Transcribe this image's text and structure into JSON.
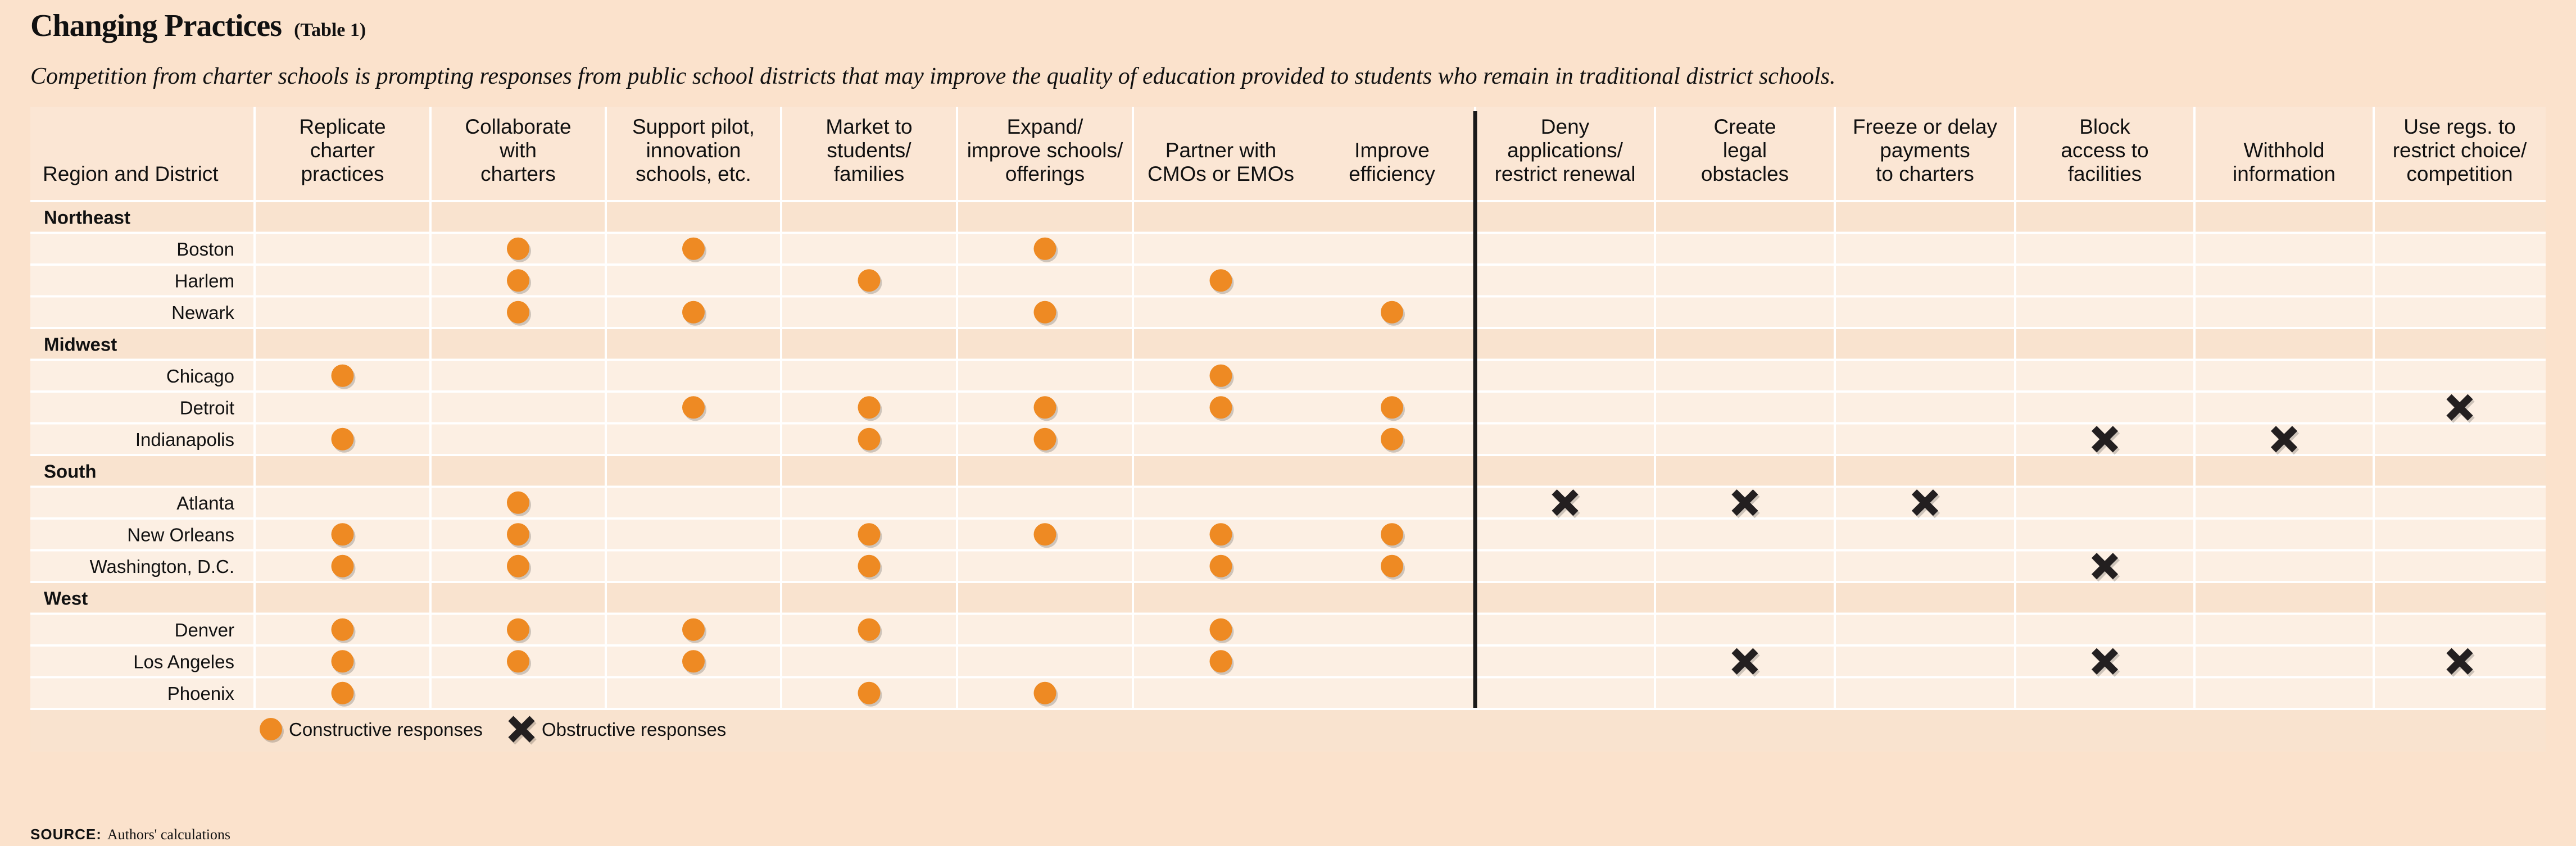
{
  "title": "Changing Practices",
  "table_tag": "(Table 1)",
  "subtitle": "Competition from charter schools is prompting responses from public school districts that may improve the quality of education provided to students who remain in traditional district schools.",
  "source": {
    "label": "SOURCE:",
    "text": "Authors' calculations"
  },
  "colors": {
    "constructive": "#ee8a23",
    "obstructive": "#231f20",
    "band": "#fbe6d4",
    "row_light": "#fcefe3",
    "row_dark": "#f9e3cf",
    "divider": "#1a1a1a"
  },
  "chart_data": {
    "type": "table",
    "row_header": "Region and District",
    "columns": [
      {
        "label": "Replicate charter practices",
        "lines": [
          "Replicate",
          "charter",
          "practices"
        ],
        "group": "constructive"
      },
      {
        "label": "Collaborate with charters",
        "lines": [
          "Collaborate",
          "with",
          "charters"
        ],
        "group": "constructive"
      },
      {
        "label": "Support pilot, innovation schools, etc.",
        "lines": [
          "Support pilot,",
          "innovation",
          "schools, etc."
        ],
        "group": "constructive"
      },
      {
        "label": "Market to students/families",
        "lines": [
          "Market to",
          "students/",
          "families"
        ],
        "group": "constructive"
      },
      {
        "label": "Expand/improve schools/offerings",
        "lines": [
          "Expand/",
          "improve schools/",
          "offerings"
        ],
        "group": "constructive"
      },
      {
        "label": "Partner with CMOs or EMOs",
        "lines": [
          "Partner with",
          "CMOs or EMOs"
        ],
        "group": "constructive"
      },
      {
        "label": "Improve efficiency",
        "lines": [
          "Improve",
          "efficiency"
        ],
        "group": "constructive"
      },
      {
        "label": "Deny applications/restrict renewal",
        "lines": [
          "Deny",
          "applications/",
          "restrict renewal"
        ],
        "group": "obstructive"
      },
      {
        "label": "Create legal obstacles",
        "lines": [
          "Create",
          "legal",
          "obstacles"
        ],
        "group": "obstructive"
      },
      {
        "label": "Freeze or delay payments to charters",
        "lines": [
          "Freeze or delay",
          "payments",
          "to charters"
        ],
        "group": "obstructive"
      },
      {
        "label": "Block access to facilities",
        "lines": [
          "Block",
          "access to",
          "facilities"
        ],
        "group": "obstructive"
      },
      {
        "label": "Withhold information",
        "lines": [
          "Withhold",
          "information"
        ],
        "group": "obstructive"
      },
      {
        "label": "Use regs. to restrict choice/competition",
        "lines": [
          "Use regs. to",
          "restrict choice/",
          "competition"
        ],
        "group": "obstructive"
      }
    ],
    "regions": [
      {
        "name": "Northeast",
        "districts": [
          {
            "name": "Boston",
            "cells": [
              0,
              1,
              1,
              0,
              1,
              0,
              0,
              0,
              0,
              0,
              0,
              0,
              0
            ]
          },
          {
            "name": "Harlem",
            "cells": [
              0,
              1,
              0,
              1,
              0,
              1,
              0,
              0,
              0,
              0,
              0,
              0,
              0
            ]
          },
          {
            "name": "Newark",
            "cells": [
              0,
              1,
              1,
              0,
              1,
              0,
              1,
              0,
              0,
              0,
              0,
              0,
              0
            ]
          }
        ]
      },
      {
        "name": "Midwest",
        "districts": [
          {
            "name": "Chicago",
            "cells": [
              1,
              0,
              0,
              0,
              0,
              1,
              0,
              0,
              0,
              0,
              0,
              0,
              0
            ]
          },
          {
            "name": "Detroit",
            "cells": [
              0,
              0,
              1,
              1,
              1,
              1,
              1,
              0,
              0,
              0,
              0,
              0,
              1
            ]
          },
          {
            "name": "Indianapolis",
            "cells": [
              1,
              0,
              0,
              1,
              1,
              0,
              1,
              0,
              0,
              0,
              1,
              1,
              0
            ]
          }
        ]
      },
      {
        "name": "South",
        "districts": [
          {
            "name": "Atlanta",
            "cells": [
              0,
              1,
              0,
              0,
              0,
              0,
              0,
              1,
              1,
              1,
              0,
              0,
              0
            ]
          },
          {
            "name": "New Orleans",
            "cells": [
              1,
              1,
              0,
              1,
              1,
              1,
              1,
              0,
              0,
              0,
              0,
              0,
              0
            ]
          },
          {
            "name": "Washington, D.C.",
            "cells": [
              1,
              1,
              0,
              1,
              0,
              1,
              1,
              0,
              0,
              0,
              1,
              0,
              0
            ]
          }
        ]
      },
      {
        "name": "West",
        "districts": [
          {
            "name": "Denver",
            "cells": [
              1,
              1,
              1,
              1,
              0,
              1,
              0,
              0,
              0,
              0,
              0,
              0,
              0
            ]
          },
          {
            "name": "Los Angeles",
            "cells": [
              1,
              1,
              1,
              0,
              0,
              1,
              0,
              0,
              1,
              0,
              1,
              0,
              1
            ]
          },
          {
            "name": "Phoenix",
            "cells": [
              1,
              0,
              0,
              1,
              1,
              0,
              0,
              0,
              0,
              0,
              0,
              0,
              0
            ]
          }
        ]
      }
    ],
    "legend": [
      {
        "label": "Constructive responses",
        "marker": "circle"
      },
      {
        "label": "Obstructive responses",
        "marker": "x"
      }
    ]
  }
}
